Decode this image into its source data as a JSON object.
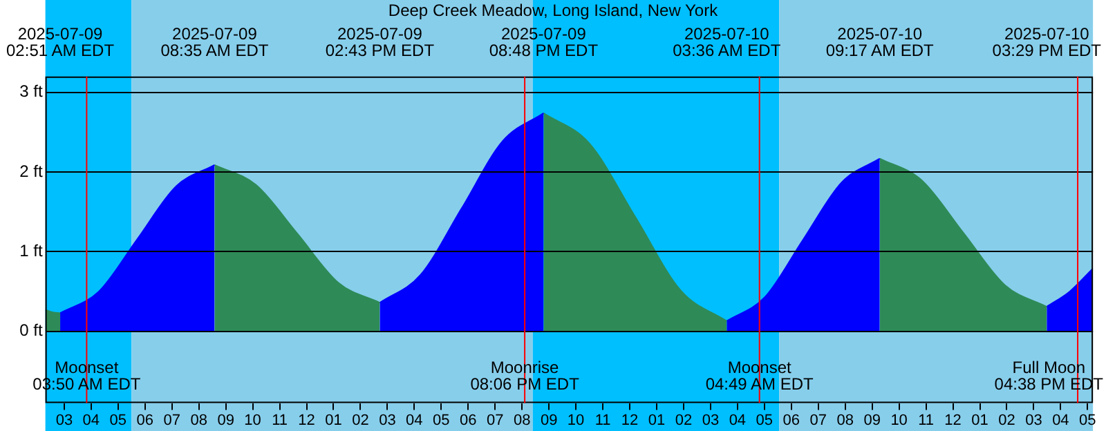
{
  "chart_data": {
    "type": "area",
    "title": "Deep Creek Meadow, Long Island, New York",
    "series": [
      {
        "color": "#2e8b57",
        "x": [
          "2025-07-09T02:18",
          "2025-07-09T02:35",
          "2025-07-09T02:51"
        ],
        "values": [
          0.27,
          0.24,
          0.23
        ]
      },
      {
        "color": "#0000ff",
        "x": [
          "2025-07-09T02:51",
          "2025-07-09T04:17",
          "2025-07-09T05:43",
          "2025-07-09T07:09",
          "2025-07-09T08:35"
        ],
        "values": [
          0.23,
          0.5,
          1.16,
          1.82,
          2.09
        ]
      },
      {
        "color": "#2e8b57",
        "x": [
          "2025-07-09T08:35",
          "2025-07-09T10:07",
          "2025-07-09T11:39",
          "2025-07-09T13:11",
          "2025-07-09T14:43"
        ],
        "values": [
          2.09,
          1.84,
          1.23,
          0.61,
          0.36
        ]
      },
      {
        "color": "#0000ff",
        "x": [
          "2025-07-09T14:43",
          "2025-07-09T16:14",
          "2025-07-09T17:46",
          "2025-07-09T19:17",
          "2025-07-09T20:48"
        ],
        "values": [
          0.36,
          0.71,
          1.55,
          2.39,
          2.74
        ]
      },
      {
        "color": "#2e8b57",
        "x": [
          "2025-07-09T20:48",
          "2025-07-09T22:30",
          "2025-07-10T00:12",
          "2025-07-10T01:54",
          "2025-07-10T03:36"
        ],
        "values": [
          2.74,
          2.36,
          1.44,
          0.51,
          0.13
        ]
      },
      {
        "color": "#0000ff",
        "x": [
          "2025-07-10T03:36",
          "2025-07-10T05:01",
          "2025-07-10T06:26",
          "2025-07-10T07:52",
          "2025-07-10T09:17"
        ],
        "values": [
          0.13,
          0.43,
          1.15,
          1.87,
          2.17
        ]
      },
      {
        "color": "#2e8b57",
        "x": [
          "2025-07-10T09:17",
          "2025-07-10T10:50",
          "2025-07-10T12:23",
          "2025-07-10T13:56",
          "2025-07-10T15:29"
        ],
        "values": [
          2.17,
          1.9,
          1.24,
          0.58,
          0.31
        ]
      },
      {
        "color": "#0000ff",
        "x": [
          "2025-07-10T15:29",
          "2025-07-10T16:20",
          "2025-07-10T17:12"
        ],
        "values": [
          0.31,
          0.5,
          0.79
        ]
      }
    ],
    "xlim": [
      "2025-07-09T02:18",
      "2025-07-10T17:12"
    ],
    "xticks": [
      {
        "value": "2025-07-09T03:00",
        "label": "03"
      },
      {
        "value": "2025-07-09T04:00",
        "label": "04"
      },
      {
        "value": "2025-07-09T05:00",
        "label": "05"
      },
      {
        "value": "2025-07-09T06:00",
        "label": "06"
      },
      {
        "value": "2025-07-09T07:00",
        "label": "07"
      },
      {
        "value": "2025-07-09T08:00",
        "label": "08"
      },
      {
        "value": "2025-07-09T09:00",
        "label": "09"
      },
      {
        "value": "2025-07-09T10:00",
        "label": "10"
      },
      {
        "value": "2025-07-09T11:00",
        "label": "11"
      },
      {
        "value": "2025-07-09T12:00",
        "label": "12"
      },
      {
        "value": "2025-07-09T13:00",
        "label": "01"
      },
      {
        "value": "2025-07-09T14:00",
        "label": "02"
      },
      {
        "value": "2025-07-09T15:00",
        "label": "03"
      },
      {
        "value": "2025-07-09T16:00",
        "label": "04"
      },
      {
        "value": "2025-07-09T17:00",
        "label": "05"
      },
      {
        "value": "2025-07-09T18:00",
        "label": "06"
      },
      {
        "value": "2025-07-09T19:00",
        "label": "07"
      },
      {
        "value": "2025-07-09T20:00",
        "label": "08"
      },
      {
        "value": "2025-07-09T21:00",
        "label": "09"
      },
      {
        "value": "2025-07-09T22:00",
        "label": "10"
      },
      {
        "value": "2025-07-09T23:00",
        "label": "11"
      },
      {
        "value": "2025-07-10T00:00",
        "label": "12"
      },
      {
        "value": "2025-07-10T01:00",
        "label": "01"
      },
      {
        "value": "2025-07-10T02:00",
        "label": "02"
      },
      {
        "value": "2025-07-10T03:00",
        "label": "03"
      },
      {
        "value": "2025-07-10T04:00",
        "label": "04"
      },
      {
        "value": "2025-07-10T05:00",
        "label": "05"
      },
      {
        "value": "2025-07-10T06:00",
        "label": "06"
      },
      {
        "value": "2025-07-10T07:00",
        "label": "07"
      },
      {
        "value": "2025-07-10T08:00",
        "label": "08"
      },
      {
        "value": "2025-07-10T09:00",
        "label": "09"
      },
      {
        "value": "2025-07-10T10:00",
        "label": "10"
      },
      {
        "value": "2025-07-10T11:00",
        "label": "11"
      },
      {
        "value": "2025-07-10T12:00",
        "label": "12"
      },
      {
        "value": "2025-07-10T13:00",
        "label": "01"
      },
      {
        "value": "2025-07-10T14:00",
        "label": "02"
      },
      {
        "value": "2025-07-10T15:00",
        "label": "03"
      },
      {
        "value": "2025-07-10T16:00",
        "label": "04"
      },
      {
        "value": "2025-07-10T17:00",
        "label": "05"
      }
    ],
    "x2lim": [
      "2025-07-09T02:18",
      "2025-07-10T17:12"
    ],
    "x2ticks": [
      {
        "value": "2025-07-09T02:51",
        "label": "2025-07-09\n02:51 AM EDT"
      },
      {
        "value": "2025-07-09T08:35",
        "label": "2025-07-09\n08:35 AM EDT"
      },
      {
        "value": "2025-07-09T14:43",
        "label": "2025-07-09\n02:43 PM EDT"
      },
      {
        "value": "2025-07-09T20:48",
        "label": "2025-07-09\n08:48 PM EDT"
      },
      {
        "value": "2025-07-10T03:36",
        "label": "2025-07-10\n03:36 AM EDT"
      },
      {
        "value": "2025-07-10T09:17",
        "label": "2025-07-10\n09:17 AM EDT"
      },
      {
        "value": "2025-07-10T15:29",
        "label": "2025-07-10\n03:29 PM EDT"
      }
    ],
    "ylim": [
      -0.9,
      3.2
    ],
    "yticks": [
      {
        "value": 0,
        "label": "0 ft"
      },
      {
        "value": 1,
        "label": "1 ft"
      },
      {
        "value": 2,
        "label": "2 ft"
      },
      {
        "value": 3,
        "label": "3 ft"
      }
    ],
    "grid": "y",
    "bands": [
      {
        "axis": "x",
        "from": "2025-07-09T02:18",
        "to": "2025-07-09T05:30",
        "color": "#00bfff"
      },
      {
        "axis": "x",
        "from": "2025-07-09T05:30",
        "to": "2025-07-09T20:24",
        "color": "#87ceeb"
      },
      {
        "axis": "x",
        "from": "2025-07-09T20:24",
        "to": "2025-07-10T05:33",
        "color": "#00bfff"
      },
      {
        "axis": "x",
        "from": "2025-07-10T05:33",
        "to": "2025-07-10T17:12",
        "color": "#87ceeb"
      }
    ],
    "ref_lines": [
      {
        "axis": "x",
        "value": "2025-07-09T03:50",
        "label": "Moonset\n03:50 AM EDT",
        "color": "#ff0000"
      },
      {
        "axis": "x",
        "value": "2025-07-09T20:06",
        "label": "Moonrise\n08:06 PM EDT",
        "color": "#ff0000"
      },
      {
        "axis": "x",
        "value": "2025-07-10T04:49",
        "label": "Moonset\n04:49 AM EDT",
        "color": "#ff0000"
      },
      {
        "axis": "x",
        "value": "2025-07-10T16:38",
        "label": "Full Moon\n04:38 PM EDT",
        "color": "#ff0000"
      }
    ]
  }
}
